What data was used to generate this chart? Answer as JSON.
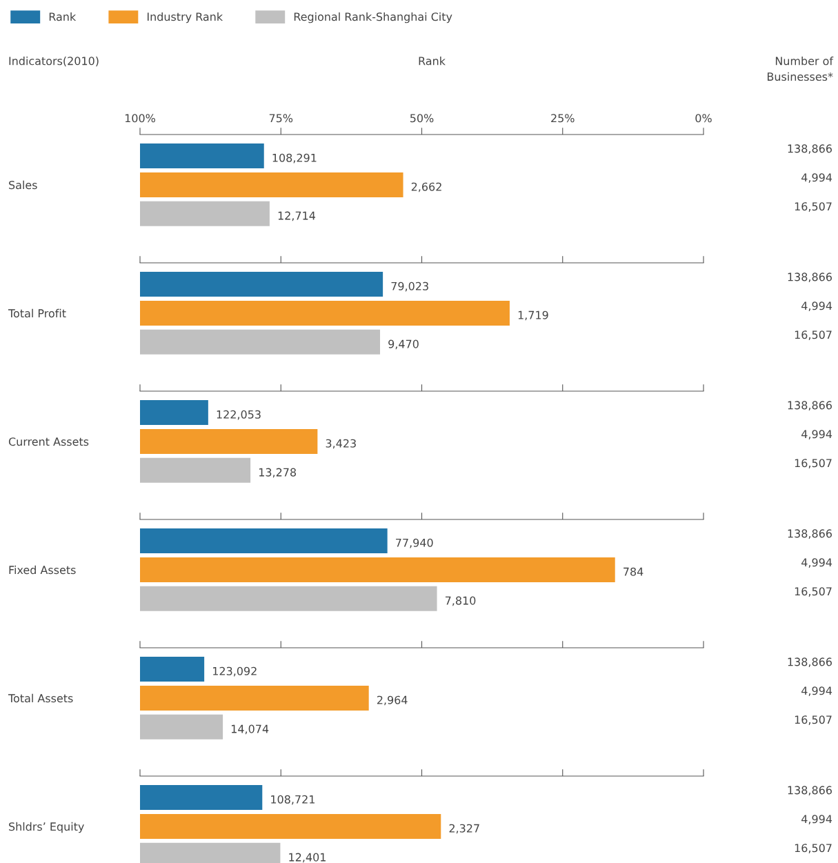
{
  "chart_data": [
    {
      "type": "bar",
      "orientation": "horizontal",
      "categories": [
        "Sales"
      ],
      "xlim": [
        100,
        0
      ],
      "xticks": [
        {
          "value": 100,
          "label": "100%"
        },
        {
          "value": 75,
          "label": "75%"
        },
        {
          "value": 50,
          "label": "50%"
        },
        {
          "value": 25,
          "label": "25%"
        },
        {
          "value": 0,
          "label": "0%"
        }
      ],
      "legend": "top",
      "grid": false,
      "annotations": [
        "Indicators(2010)",
        "Rank",
        "Number of Businesses*",
        {
          "text": "108,291",
          "x": 78.0
        },
        {
          "text": "2,662",
          "x": 53.3
        },
        {
          "text": "12,714",
          "x": 77.0
        },
        "138,866",
        "4,994",
        "16,507"
      ],
      "series": [
        {
          "name": "Rank",
          "color": "#2277aa",
          "base": [
            78.0
          ],
          "values": [
            22.0
          ]
        },
        {
          "name": "Industry Rank",
          "color": "#f39b2a",
          "base": [
            53.3
          ],
          "values": [
            46.7
          ]
        },
        {
          "name": "Regional Rank-Shanghai City",
          "color": "#c0c0c0",
          "base": [
            77.0
          ],
          "values": [
            23.0
          ]
        }
      ]
    },
    {
      "type": "bar",
      "orientation": "horizontal",
      "categories": [
        "Total Profit"
      ],
      "xlim": [
        100,
        0
      ],
      "xticks": [
        100,
        75,
        50,
        25,
        0
      ],
      "tick_labels": "y",
      "grid": false,
      "annotations": [
        {
          "text": "79,023",
          "x": 56.9
        },
        {
          "text": "1,719",
          "x": 34.4
        },
        {
          "text": "9,470",
          "x": 57.4
        },
        "138,866",
        "4,994",
        "16,507"
      ],
      "series": [
        {
          "color": "#2277aa",
          "base": [
            56.9
          ],
          "values": [
            43.1
          ]
        },
        {
          "color": "#f39b2a",
          "base": [
            34.4
          ],
          "values": [
            65.6
          ]
        },
        {
          "color": "#c0c0c0",
          "base": [
            57.4
          ],
          "values": [
            42.6
          ]
        }
      ]
    },
    {
      "type": "bar",
      "orientation": "horizontal",
      "categories": [
        "Current Assets"
      ],
      "xlim": [
        100,
        0
      ],
      "xticks": [
        100,
        75,
        50,
        25,
        0
      ],
      "tick_labels": "y",
      "grid": false,
      "annotations": [
        {
          "text": "122,053",
          "x": 87.9
        },
        {
          "text": "3,423",
          "x": 68.5
        },
        {
          "text": "13,278",
          "x": 80.4
        },
        "138,866",
        "4,994",
        "16,507"
      ],
      "series": [
        {
          "color": "#2277aa",
          "base": [
            87.9
          ],
          "values": [
            12.1
          ]
        },
        {
          "color": "#f39b2a",
          "base": [
            68.5
          ],
          "values": [
            31.5
          ]
        },
        {
          "color": "#c0c0c0",
          "base": [
            80.4
          ],
          "values": [
            19.6
          ]
        }
      ]
    },
    {
      "type": "bar",
      "orientation": "horizontal",
      "categories": [
        "Fixed Assets"
      ],
      "xlim": [
        100,
        0
      ],
      "xticks": [
        100,
        75,
        50,
        25,
        0
      ],
      "tick_labels": "y",
      "grid": false,
      "annotations": [
        {
          "text": "77,940",
          "x": 56.1
        },
        {
          "text": "784",
          "x": 15.7
        },
        {
          "text": "7,810",
          "x": 47.3
        },
        "138,866",
        "4,994",
        "16,507"
      ],
      "series": [
        {
          "color": "#2277aa",
          "base": [
            56.1
          ],
          "values": [
            43.9
          ]
        },
        {
          "color": "#f39b2a",
          "base": [
            15.7
          ],
          "values": [
            84.3
          ]
        },
        {
          "color": "#c0c0c0",
          "base": [
            47.3
          ],
          "values": [
            52.7
          ]
        }
      ]
    },
    {
      "type": "bar",
      "orientation": "horizontal",
      "categories": [
        "Total Assets"
      ],
      "xlim": [
        100,
        0
      ],
      "xticks": [
        100,
        75,
        50,
        25,
        0
      ],
      "tick_labels": "y",
      "grid": false,
      "annotations": [
        {
          "text": "123,092",
          "x": 88.6
        },
        {
          "text": "2,964",
          "x": 59.4
        },
        {
          "text": "14,074",
          "x": 85.3
        },
        "138,866",
        "4,994",
        "16,507"
      ],
      "series": [
        {
          "color": "#2277aa",
          "base": [
            88.6
          ],
          "values": [
            11.4
          ]
        },
        {
          "color": "#f39b2a",
          "base": [
            59.4
          ],
          "values": [
            40.6
          ]
        },
        {
          "color": "#c0c0c0",
          "base": [
            85.3
          ],
          "values": [
            14.7
          ]
        }
      ]
    },
    {
      "type": "bar",
      "orientation": "horizontal",
      "categories": [
        "Shldrs’ Equity"
      ],
      "xlim": [
        100,
        0
      ],
      "xticks": [
        100,
        75,
        50,
        25,
        0
      ],
      "tick_labels": "y",
      "grid": false,
      "annotations": [
        {
          "text": "108,721",
          "x": 78.3
        },
        {
          "text": "2,327",
          "x": 46.6
        },
        {
          "text": "12,401",
          "x": 75.1
        },
        "138,866",
        "4,994",
        "16,507"
      ],
      "series": [
        {
          "color": "#2277aa",
          "base": [
            78.3
          ],
          "values": [
            21.7
          ]
        },
        {
          "color": "#f39b2a",
          "base": [
            46.6
          ],
          "values": [
            53.4
          ]
        },
        {
          "color": "#c0c0c0",
          "base": [
            75.1
          ],
          "values": [
            24.9
          ]
        }
      ]
    }
  ]
}
